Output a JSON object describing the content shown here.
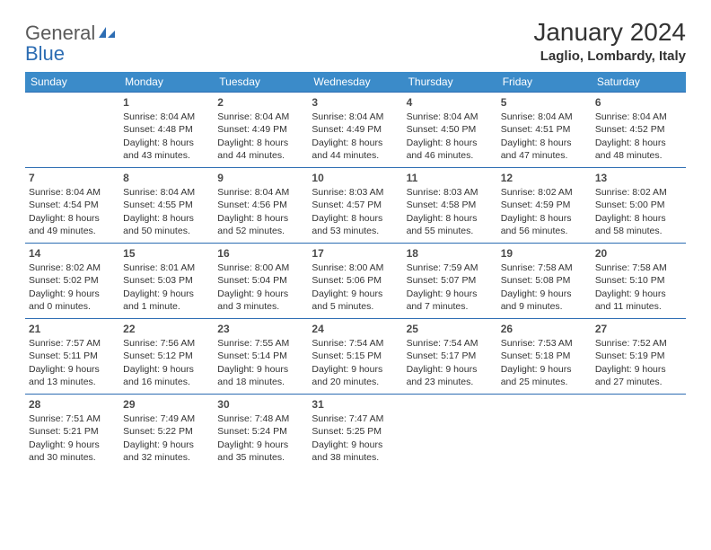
{
  "logo": {
    "part1": "General",
    "part2": "Blue"
  },
  "month_title": "January 2024",
  "location": "Laglio, Lombardy, Italy",
  "colors": {
    "header_bg": "#3b8bc9",
    "header_text": "#ffffff",
    "border": "#2d6db3",
    "text": "#333333",
    "logo_gray": "#5a5a5a",
    "logo_blue": "#2d6db3"
  },
  "weekdays": [
    "Sunday",
    "Monday",
    "Tuesday",
    "Wednesday",
    "Thursday",
    "Friday",
    "Saturday"
  ],
  "grid": [
    [
      null,
      {
        "n": "1",
        "sr": "8:04 AM",
        "ss": "4:48 PM",
        "dl": "8 hours and 43 minutes."
      },
      {
        "n": "2",
        "sr": "8:04 AM",
        "ss": "4:49 PM",
        "dl": "8 hours and 44 minutes."
      },
      {
        "n": "3",
        "sr": "8:04 AM",
        "ss": "4:49 PM",
        "dl": "8 hours and 44 minutes."
      },
      {
        "n": "4",
        "sr": "8:04 AM",
        "ss": "4:50 PM",
        "dl": "8 hours and 46 minutes."
      },
      {
        "n": "5",
        "sr": "8:04 AM",
        "ss": "4:51 PM",
        "dl": "8 hours and 47 minutes."
      },
      {
        "n": "6",
        "sr": "8:04 AM",
        "ss": "4:52 PM",
        "dl": "8 hours and 48 minutes."
      }
    ],
    [
      {
        "n": "7",
        "sr": "8:04 AM",
        "ss": "4:54 PM",
        "dl": "8 hours and 49 minutes."
      },
      {
        "n": "8",
        "sr": "8:04 AM",
        "ss": "4:55 PM",
        "dl": "8 hours and 50 minutes."
      },
      {
        "n": "9",
        "sr": "8:04 AM",
        "ss": "4:56 PM",
        "dl": "8 hours and 52 minutes."
      },
      {
        "n": "10",
        "sr": "8:03 AM",
        "ss": "4:57 PM",
        "dl": "8 hours and 53 minutes."
      },
      {
        "n": "11",
        "sr": "8:03 AM",
        "ss": "4:58 PM",
        "dl": "8 hours and 55 minutes."
      },
      {
        "n": "12",
        "sr": "8:02 AM",
        "ss": "4:59 PM",
        "dl": "8 hours and 56 minutes."
      },
      {
        "n": "13",
        "sr": "8:02 AM",
        "ss": "5:00 PM",
        "dl": "8 hours and 58 minutes."
      }
    ],
    [
      {
        "n": "14",
        "sr": "8:02 AM",
        "ss": "5:02 PM",
        "dl": "9 hours and 0 minutes."
      },
      {
        "n": "15",
        "sr": "8:01 AM",
        "ss": "5:03 PM",
        "dl": "9 hours and 1 minute."
      },
      {
        "n": "16",
        "sr": "8:00 AM",
        "ss": "5:04 PM",
        "dl": "9 hours and 3 minutes."
      },
      {
        "n": "17",
        "sr": "8:00 AM",
        "ss": "5:06 PM",
        "dl": "9 hours and 5 minutes."
      },
      {
        "n": "18",
        "sr": "7:59 AM",
        "ss": "5:07 PM",
        "dl": "9 hours and 7 minutes."
      },
      {
        "n": "19",
        "sr": "7:58 AM",
        "ss": "5:08 PM",
        "dl": "9 hours and 9 minutes."
      },
      {
        "n": "20",
        "sr": "7:58 AM",
        "ss": "5:10 PM",
        "dl": "9 hours and 11 minutes."
      }
    ],
    [
      {
        "n": "21",
        "sr": "7:57 AM",
        "ss": "5:11 PM",
        "dl": "9 hours and 13 minutes."
      },
      {
        "n": "22",
        "sr": "7:56 AM",
        "ss": "5:12 PM",
        "dl": "9 hours and 16 minutes."
      },
      {
        "n": "23",
        "sr": "7:55 AM",
        "ss": "5:14 PM",
        "dl": "9 hours and 18 minutes."
      },
      {
        "n": "24",
        "sr": "7:54 AM",
        "ss": "5:15 PM",
        "dl": "9 hours and 20 minutes."
      },
      {
        "n": "25",
        "sr": "7:54 AM",
        "ss": "5:17 PM",
        "dl": "9 hours and 23 minutes."
      },
      {
        "n": "26",
        "sr": "7:53 AM",
        "ss": "5:18 PM",
        "dl": "9 hours and 25 minutes."
      },
      {
        "n": "27",
        "sr": "7:52 AM",
        "ss": "5:19 PM",
        "dl": "9 hours and 27 minutes."
      }
    ],
    [
      {
        "n": "28",
        "sr": "7:51 AM",
        "ss": "5:21 PM",
        "dl": "9 hours and 30 minutes."
      },
      {
        "n": "29",
        "sr": "7:49 AM",
        "ss": "5:22 PM",
        "dl": "9 hours and 32 minutes."
      },
      {
        "n": "30",
        "sr": "7:48 AM",
        "ss": "5:24 PM",
        "dl": "9 hours and 35 minutes."
      },
      {
        "n": "31",
        "sr": "7:47 AM",
        "ss": "5:25 PM",
        "dl": "9 hours and 38 minutes."
      },
      null,
      null,
      null
    ]
  ],
  "labels": {
    "sunrise_prefix": "Sunrise: ",
    "sunset_prefix": "Sunset: ",
    "daylight_prefix": "Daylight: "
  }
}
